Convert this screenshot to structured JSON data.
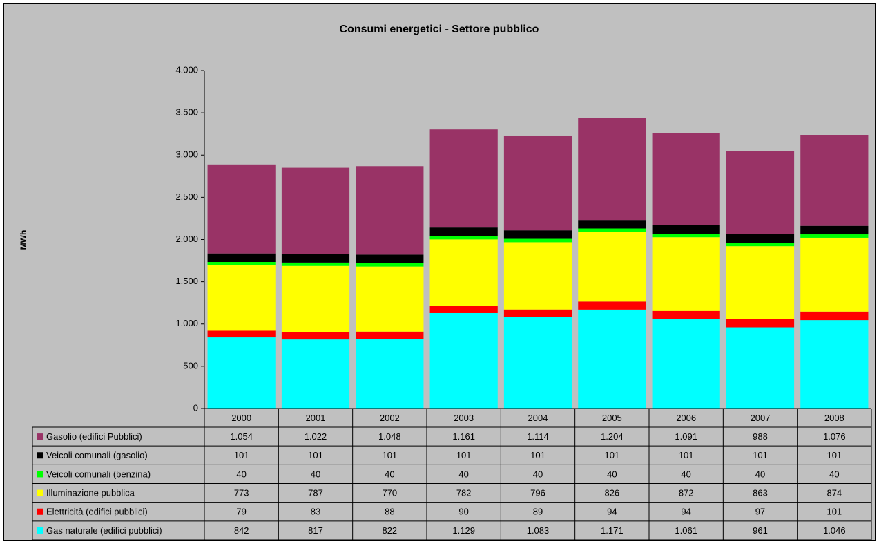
{
  "chart_data": {
    "type": "stacked_bar",
    "title": "Consumi energetici - Settore pubblico",
    "y_label": "MWh",
    "categories": [
      "2000",
      "2001",
      "2002",
      "2003",
      "2004",
      "2005",
      "2006",
      "2007",
      "2008"
    ],
    "series": [
      {
        "name": "Gasolio (edifici Pubblici)",
        "color": "#993366",
        "values": [
          1054,
          1022,
          1048,
          1161,
          1114,
          1204,
          1091,
          988,
          1076
        ],
        "value_labels": [
          "1.054",
          "1.022",
          "1.048",
          "1.161",
          "1.114",
          "1.204",
          "1.091",
          "988",
          "1.076"
        ]
      },
      {
        "name": "Veicoli comunali (gasolio)",
        "color": "#000000",
        "values": [
          101,
          101,
          101,
          101,
          101,
          101,
          101,
          101,
          101
        ],
        "value_labels": [
          "101",
          "101",
          "101",
          "101",
          "101",
          "101",
          "101",
          "101",
          "101"
        ]
      },
      {
        "name": "Veicoli comunali (benzina)",
        "color": "#00ff00",
        "values": [
          40,
          40,
          40,
          40,
          40,
          40,
          40,
          40,
          40
        ],
        "value_labels": [
          "40",
          "40",
          "40",
          "40",
          "40",
          "40",
          "40",
          "40",
          "40"
        ]
      },
      {
        "name": "Illuminazione pubblica",
        "color": "#ffff00",
        "values": [
          773,
          787,
          770,
          782,
          796,
          826,
          872,
          863,
          874
        ],
        "value_labels": [
          "773",
          "787",
          "770",
          "782",
          "796",
          "826",
          "872",
          "863",
          "874"
        ]
      },
      {
        "name": "Elettricità (edifici pubblici)",
        "color": "#ff0000",
        "values": [
          79,
          83,
          88,
          90,
          89,
          94,
          94,
          97,
          101
        ],
        "value_labels": [
          "79",
          "83",
          "88",
          "90",
          "89",
          "94",
          "94",
          "97",
          "101"
        ]
      },
      {
        "name": "Gas naturale (edifici pubblici)",
        "color": "#00ffff",
        "values": [
          842,
          817,
          822,
          1129,
          1083,
          1171,
          1061,
          961,
          1046
        ],
        "value_labels": [
          "842",
          "817",
          "822",
          "1.129",
          "1.083",
          "1.171",
          "1.061",
          "961",
          "1.046"
        ]
      }
    ],
    "ylim": [
      0,
      4000
    ],
    "yticks": [
      0,
      500,
      {
        "value": 1000,
        "label": "1.000"
      },
      {
        "value": 1500,
        "label": "1.500"
      },
      {
        "value": 2000,
        "label": "2.000"
      },
      {
        "value": 2500,
        "label": "2.500"
      },
      {
        "value": 3000,
        "label": "3.000"
      },
      {
        "value": 3500,
        "label": "3.500"
      },
      {
        "value": 4000,
        "label": "4.000"
      }
    ],
    "grid": false
  }
}
